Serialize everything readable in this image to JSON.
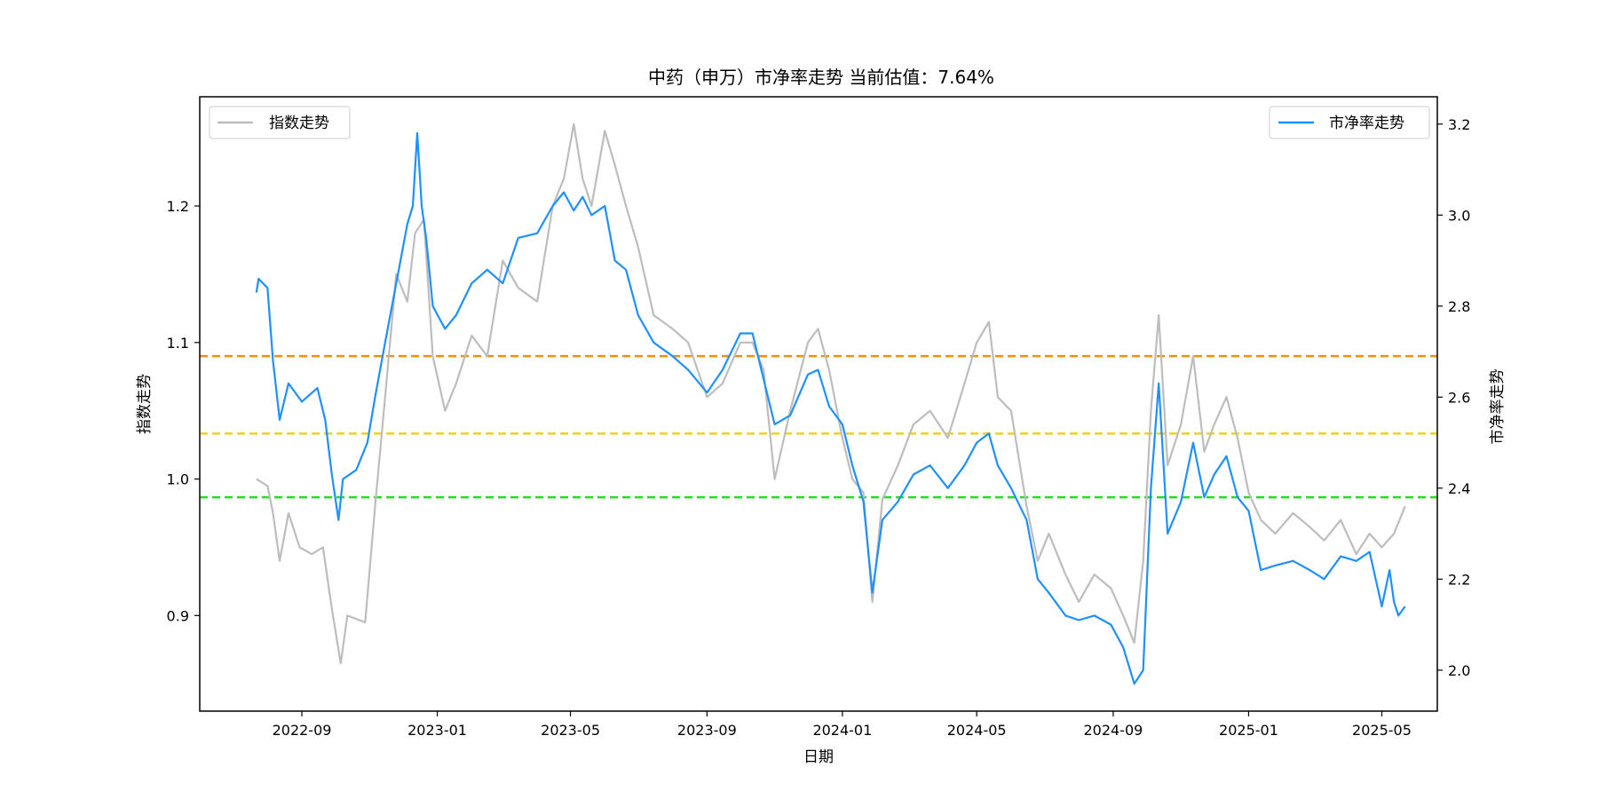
{
  "chart_data": {
    "type": "line",
    "title": "中药（申万）市净率走势 当前估值：7.64%",
    "xlabel": "日期",
    "ylabel_left": "指数走势",
    "ylabel_right": "市净率走势",
    "x_ticks": [
      "2022-09",
      "2023-01",
      "2023-05",
      "2023-09",
      "2024-01",
      "2024-05",
      "2024-09",
      "2025-01",
      "2025-05"
    ],
    "x_range": [
      "2022-06-01",
      "2025-06-20"
    ],
    "y_left_ticks": [
      "0.9",
      "1.0",
      "1.1",
      "1.2"
    ],
    "y_left_lim": [
      0.83,
      1.28
    ],
    "y_right_ticks": [
      "2.0",
      "2.2",
      "2.4",
      "2.6",
      "2.8",
      "3.0",
      "3.2"
    ],
    "y_right_lim": [
      1.91,
      3.26
    ],
    "legend_left": "指数走势",
    "legend_right": "市净率走势",
    "reference_lines_right_axis": [
      {
        "value": 2.69,
        "color": "#ff8c00"
      },
      {
        "value": 2.52,
        "color": "#f0d020"
      },
      {
        "value": 2.38,
        "color": "#22dd22"
      }
    ],
    "series": [
      {
        "name": "指数走势",
        "axis": "left",
        "color": "#bdbdbd",
        "points": [
          [
            "2022-07-22",
            1.0
          ],
          [
            "2022-08-01",
            0.995
          ],
          [
            "2022-08-06",
            0.975
          ],
          [
            "2022-08-12",
            0.94
          ],
          [
            "2022-08-20",
            0.975
          ],
          [
            "2022-08-30",
            0.95
          ],
          [
            "2022-09-10",
            0.945
          ],
          [
            "2022-09-20",
            0.95
          ],
          [
            "2022-09-28",
            0.905
          ],
          [
            "2022-10-06",
            0.865
          ],
          [
            "2022-10-12",
            0.9
          ],
          [
            "2022-10-28",
            0.895
          ],
          [
            "2022-11-06",
            0.98
          ],
          [
            "2022-11-15",
            1.06
          ],
          [
            "2022-11-25",
            1.15
          ],
          [
            "2022-12-05",
            1.13
          ],
          [
            "2022-12-12",
            1.18
          ],
          [
            "2022-12-20",
            1.19
          ],
          [
            "2022-12-28",
            1.09
          ],
          [
            "2023-01-08",
            1.05
          ],
          [
            "2023-01-18",
            1.07
          ],
          [
            "2023-02-01",
            1.105
          ],
          [
            "2023-02-15",
            1.09
          ],
          [
            "2023-03-01",
            1.16
          ],
          [
            "2023-03-15",
            1.14
          ],
          [
            "2023-04-01",
            1.13
          ],
          [
            "2023-04-15",
            1.2
          ],
          [
            "2023-04-25",
            1.22
          ],
          [
            "2023-05-04",
            1.26
          ],
          [
            "2023-05-12",
            1.22
          ],
          [
            "2023-05-20",
            1.2
          ],
          [
            "2023-06-01",
            1.255
          ],
          [
            "2023-06-10",
            1.23
          ],
          [
            "2023-06-20",
            1.2
          ],
          [
            "2023-07-01",
            1.17
          ],
          [
            "2023-07-15",
            1.12
          ],
          [
            "2023-08-01",
            1.11
          ],
          [
            "2023-08-15",
            1.1
          ],
          [
            "2023-09-01",
            1.06
          ],
          [
            "2023-09-15",
            1.07
          ],
          [
            "2023-10-01",
            1.1
          ],
          [
            "2023-10-12",
            1.1
          ],
          [
            "2023-10-22",
            1.08
          ],
          [
            "2023-11-01",
            1.0
          ],
          [
            "2023-11-15",
            1.05
          ],
          [
            "2023-12-01",
            1.1
          ],
          [
            "2023-12-10",
            1.11
          ],
          [
            "2023-12-20",
            1.08
          ],
          [
            "2024-01-01",
            1.03
          ],
          [
            "2024-01-10",
            1.0
          ],
          [
            "2024-01-20",
            0.99
          ],
          [
            "2024-01-28",
            0.91
          ],
          [
            "2024-02-06",
            0.985
          ],
          [
            "2024-02-20",
            1.01
          ],
          [
            "2024-03-05",
            1.04
          ],
          [
            "2024-03-20",
            1.05
          ],
          [
            "2024-04-05",
            1.03
          ],
          [
            "2024-04-20",
            1.07
          ],
          [
            "2024-05-01",
            1.1
          ],
          [
            "2024-05-12",
            1.115
          ],
          [
            "2024-05-20",
            1.06
          ],
          [
            "2024-06-01",
            1.05
          ],
          [
            "2024-06-15",
            0.98
          ],
          [
            "2024-06-25",
            0.94
          ],
          [
            "2024-07-05",
            0.96
          ],
          [
            "2024-07-20",
            0.93
          ],
          [
            "2024-08-01",
            0.91
          ],
          [
            "2024-08-15",
            0.93
          ],
          [
            "2024-08-30",
            0.92
          ],
          [
            "2024-09-10",
            0.9
          ],
          [
            "2024-09-20",
            0.88
          ],
          [
            "2024-09-28",
            0.94
          ],
          [
            "2024-10-05",
            1.05
          ],
          [
            "2024-10-12",
            1.12
          ],
          [
            "2024-10-20",
            1.01
          ],
          [
            "2024-11-01",
            1.04
          ],
          [
            "2024-11-12",
            1.09
          ],
          [
            "2024-11-22",
            1.02
          ],
          [
            "2024-12-01",
            1.04
          ],
          [
            "2024-12-12",
            1.06
          ],
          [
            "2024-12-22",
            1.03
          ],
          [
            "2025-01-01",
            0.99
          ],
          [
            "2025-01-12",
            0.97
          ],
          [
            "2025-01-25",
            0.96
          ],
          [
            "2025-02-10",
            0.975
          ],
          [
            "2025-02-25",
            0.965
          ],
          [
            "2025-03-10",
            0.955
          ],
          [
            "2025-03-25",
            0.97
          ],
          [
            "2025-04-08",
            0.945
          ],
          [
            "2025-04-20",
            0.96
          ],
          [
            "2025-05-01",
            0.95
          ],
          [
            "2025-05-12",
            0.96
          ],
          [
            "2025-05-22",
            0.98
          ]
        ]
      },
      {
        "name": "市净率走势",
        "axis": "right",
        "color": "#1e90ff",
        "points": [
          [
            "2022-07-22",
            2.83
          ],
          [
            "2022-07-24",
            2.86
          ],
          [
            "2022-08-01",
            2.84
          ],
          [
            "2022-08-06",
            2.68
          ],
          [
            "2022-08-12",
            2.55
          ],
          [
            "2022-08-20",
            2.63
          ],
          [
            "2022-09-01",
            2.59
          ],
          [
            "2022-09-15",
            2.62
          ],
          [
            "2022-09-22",
            2.55
          ],
          [
            "2022-09-28",
            2.43
          ],
          [
            "2022-10-04",
            2.33
          ],
          [
            "2022-10-08",
            2.42
          ],
          [
            "2022-10-20",
            2.44
          ],
          [
            "2022-10-30",
            2.5
          ],
          [
            "2022-11-06",
            2.6
          ],
          [
            "2022-11-15",
            2.72
          ],
          [
            "2022-11-25",
            2.85
          ],
          [
            "2022-12-05",
            2.98
          ],
          [
            "2022-12-10",
            3.02
          ],
          [
            "2022-12-14",
            3.18
          ],
          [
            "2022-12-18",
            3.02
          ],
          [
            "2022-12-22",
            2.95
          ],
          [
            "2022-12-28",
            2.8
          ],
          [
            "2023-01-08",
            2.75
          ],
          [
            "2023-01-18",
            2.78
          ],
          [
            "2023-02-01",
            2.85
          ],
          [
            "2023-02-15",
            2.88
          ],
          [
            "2023-03-01",
            2.85
          ],
          [
            "2023-03-15",
            2.95
          ],
          [
            "2023-04-01",
            2.96
          ],
          [
            "2023-04-15",
            3.02
          ],
          [
            "2023-04-25",
            3.05
          ],
          [
            "2023-05-04",
            3.01
          ],
          [
            "2023-05-12",
            3.04
          ],
          [
            "2023-05-20",
            3.0
          ],
          [
            "2023-06-01",
            3.02
          ],
          [
            "2023-06-10",
            2.9
          ],
          [
            "2023-06-20",
            2.88
          ],
          [
            "2023-07-01",
            2.78
          ],
          [
            "2023-07-15",
            2.72
          ],
          [
            "2023-08-01",
            2.69
          ],
          [
            "2023-08-15",
            2.66
          ],
          [
            "2023-09-01",
            2.61
          ],
          [
            "2023-09-15",
            2.66
          ],
          [
            "2023-10-01",
            2.74
          ],
          [
            "2023-10-12",
            2.74
          ],
          [
            "2023-10-20",
            2.66
          ],
          [
            "2023-11-01",
            2.54
          ],
          [
            "2023-11-15",
            2.56
          ],
          [
            "2023-12-01",
            2.65
          ],
          [
            "2023-12-10",
            2.66
          ],
          [
            "2023-12-20",
            2.58
          ],
          [
            "2024-01-01",
            2.54
          ],
          [
            "2024-01-10",
            2.45
          ],
          [
            "2024-01-20",
            2.37
          ],
          [
            "2024-01-28",
            2.17
          ],
          [
            "2024-02-06",
            2.33
          ],
          [
            "2024-02-20",
            2.37
          ],
          [
            "2024-03-05",
            2.43
          ],
          [
            "2024-03-20",
            2.45
          ],
          [
            "2024-04-05",
            2.4
          ],
          [
            "2024-04-20",
            2.45
          ],
          [
            "2024-05-01",
            2.5
          ],
          [
            "2024-05-12",
            2.52
          ],
          [
            "2024-05-20",
            2.45
          ],
          [
            "2024-06-01",
            2.4
          ],
          [
            "2024-06-15",
            2.33
          ],
          [
            "2024-06-25",
            2.2
          ],
          [
            "2024-07-05",
            2.17
          ],
          [
            "2024-07-20",
            2.12
          ],
          [
            "2024-08-01",
            2.11
          ],
          [
            "2024-08-15",
            2.12
          ],
          [
            "2024-08-30",
            2.1
          ],
          [
            "2024-09-10",
            2.05
          ],
          [
            "2024-09-20",
            1.97
          ],
          [
            "2024-09-28",
            2.0
          ],
          [
            "2024-10-05",
            2.4
          ],
          [
            "2024-10-12",
            2.63
          ],
          [
            "2024-10-20",
            2.3
          ],
          [
            "2024-11-01",
            2.37
          ],
          [
            "2024-11-12",
            2.5
          ],
          [
            "2024-11-22",
            2.38
          ],
          [
            "2024-12-01",
            2.43
          ],
          [
            "2024-12-12",
            2.47
          ],
          [
            "2024-12-22",
            2.38
          ],
          [
            "2025-01-01",
            2.35
          ],
          [
            "2025-01-12",
            2.22
          ],
          [
            "2025-01-25",
            2.23
          ],
          [
            "2025-02-10",
            2.24
          ],
          [
            "2025-02-25",
            2.22
          ],
          [
            "2025-03-10",
            2.2
          ],
          [
            "2025-03-25",
            2.25
          ],
          [
            "2025-04-08",
            2.24
          ],
          [
            "2025-04-20",
            2.26
          ],
          [
            "2025-05-01",
            2.14
          ],
          [
            "2025-05-08",
            2.22
          ],
          [
            "2025-05-12",
            2.15
          ],
          [
            "2025-05-16",
            2.12
          ],
          [
            "2025-05-22",
            2.14
          ]
        ]
      }
    ]
  }
}
